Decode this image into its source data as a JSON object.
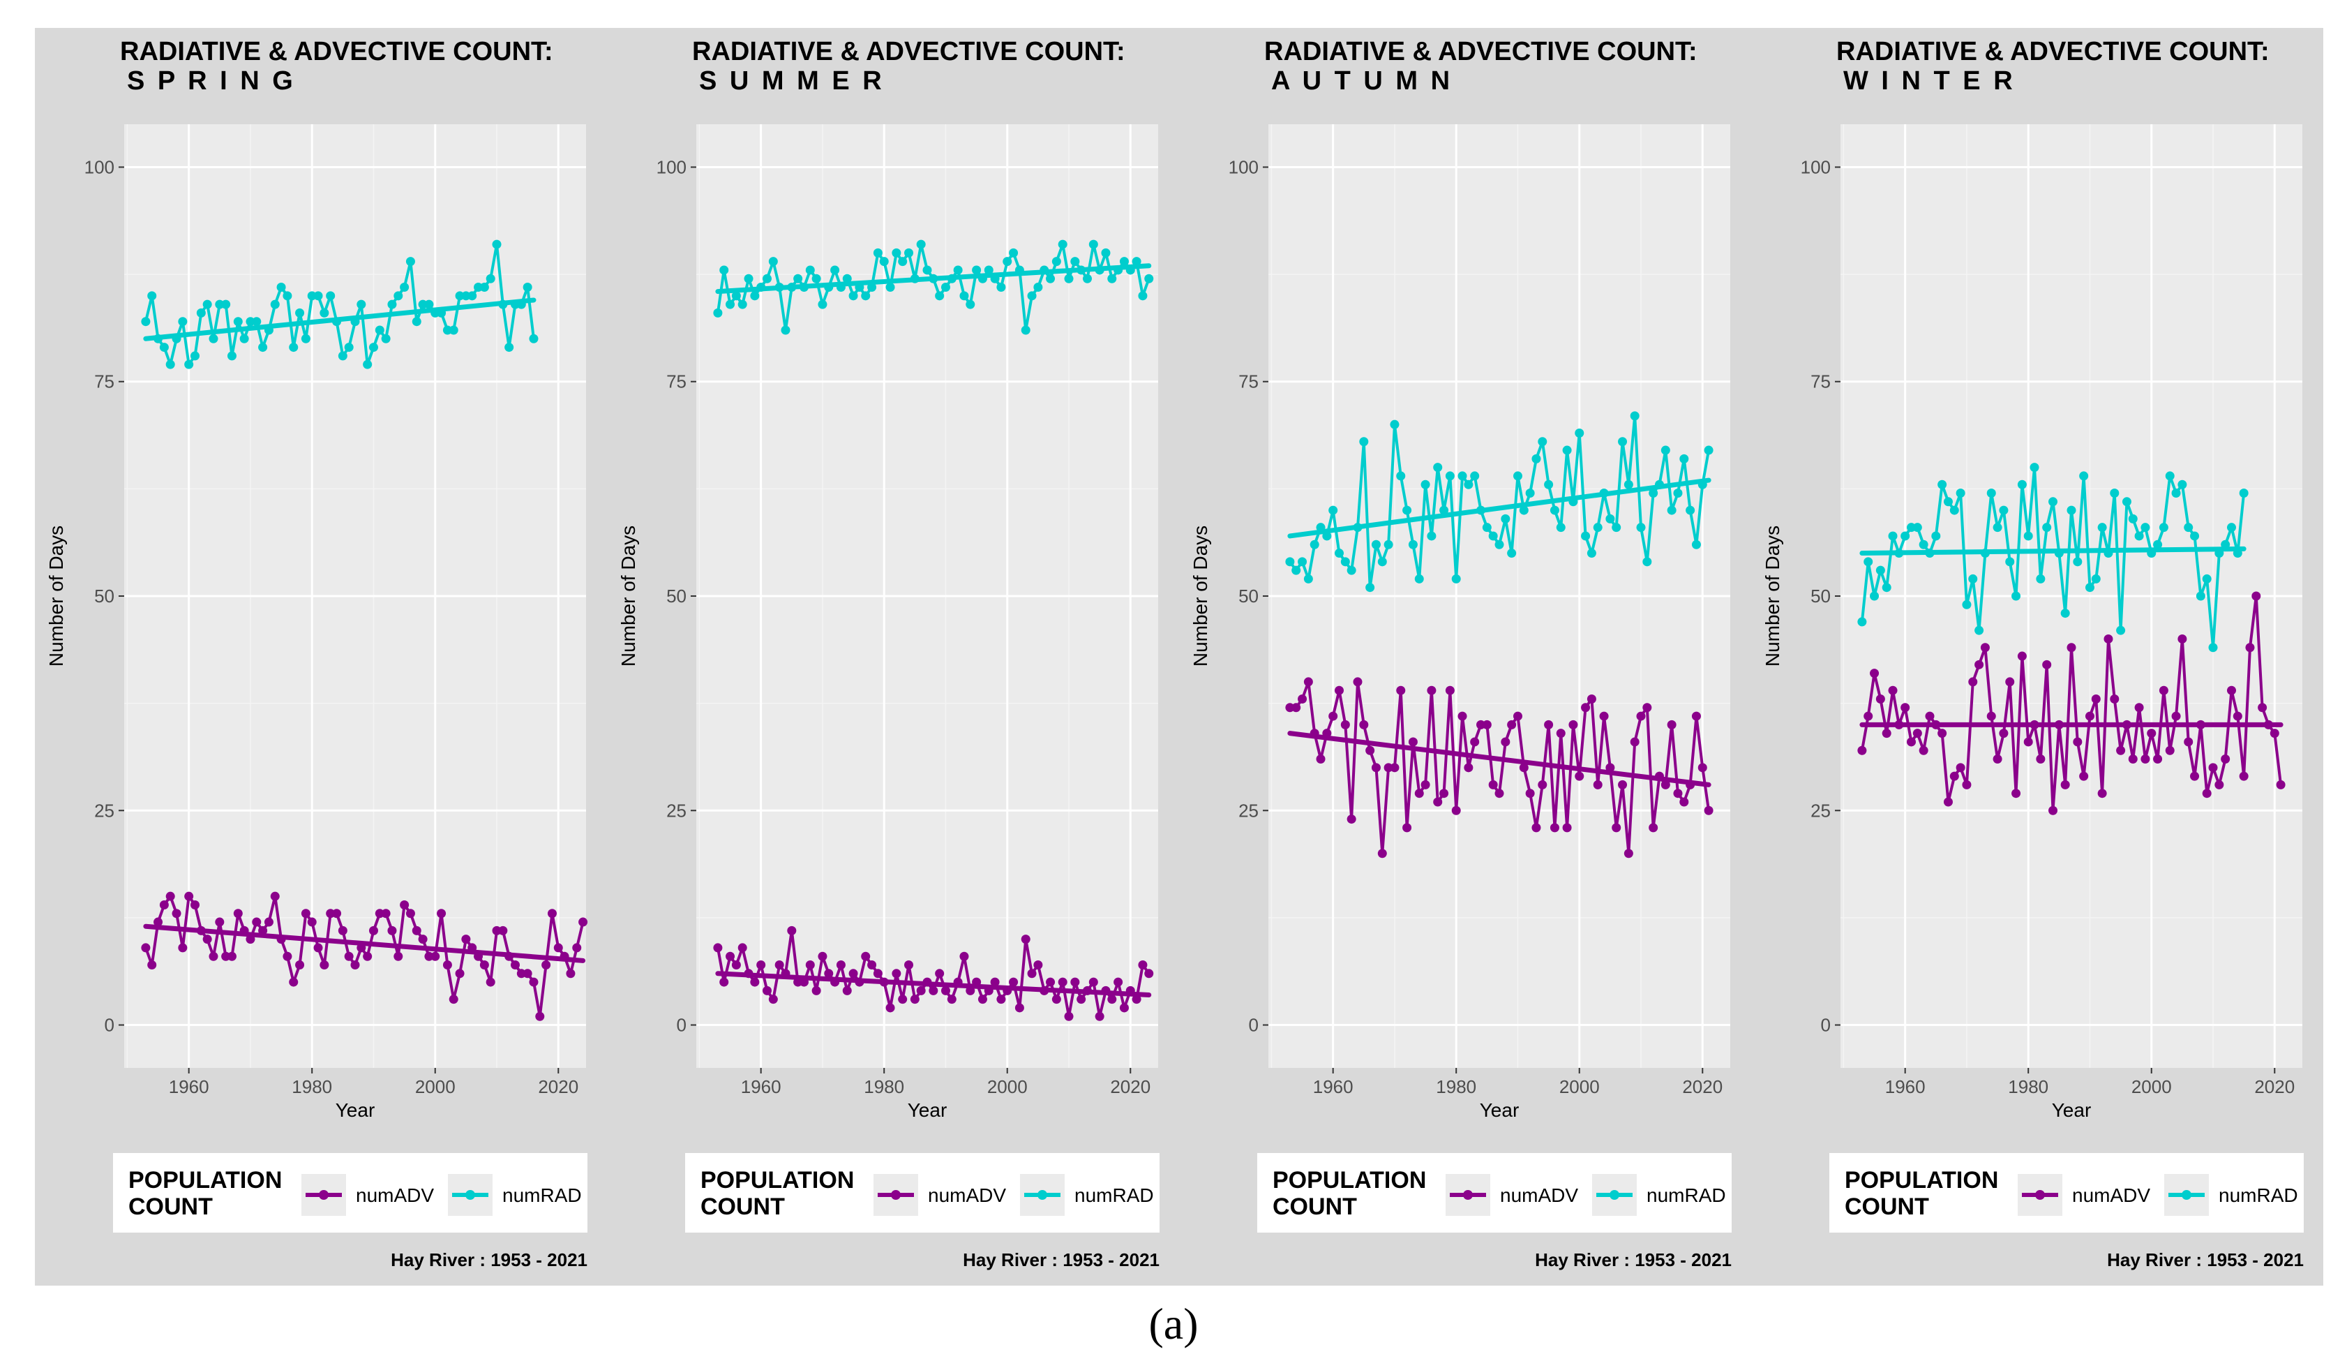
{
  "figure_label": "(a)",
  "chart_data": [
    {
      "type": "line",
      "title_line1": "RADIATIVE & ADVECTIVE COUNT:",
      "title_line2": "S P R I N G",
      "xlabel": "Year",
      "ylabel": "Number of Days",
      "xlim": [
        1949.5,
        2024.5
      ],
      "ylim": [
        -5,
        105
      ],
      "xticks": [
        "1960",
        "1980",
        "2000",
        "2020"
      ],
      "yticks": [
        "0",
        "25",
        "50",
        "75",
        "100"
      ],
      "legend_title_line1": "POPULATION",
      "legend_title_line2": "COUNT",
      "legend_entries": [
        "numADV",
        "numRAD"
      ],
      "caption": "Hay River :  1953 - 2021",
      "colors": {
        "numADV": "#8b008b",
        "numRAD": "#00cdcd"
      },
      "x_start": 1953,
      "series": [
        {
          "name": "numRAD",
          "values": [
            82,
            85,
            80,
            79,
            77,
            80,
            82,
            77,
            78,
            83,
            84,
            80,
            84,
            84,
            78,
            82,
            80,
            82,
            82,
            79,
            81,
            84,
            86,
            85,
            79,
            83,
            80,
            85,
            85,
            83,
            85,
            82,
            78,
            79,
            82,
            84,
            77,
            79,
            81,
            80,
            84,
            85,
            86,
            89,
            82,
            84,
            84,
            83,
            83,
            81,
            81,
            85,
            85,
            85,
            86,
            86,
            87,
            91,
            84,
            79,
            84,
            84,
            86,
            80
          ],
          "trend": [
            80,
            84.5
          ]
        },
        {
          "name": "numADV",
          "values": [
            9,
            7,
            12,
            14,
            15,
            13,
            9,
            15,
            14,
            11,
            10,
            8,
            12,
            8,
            8,
            13,
            11,
            10,
            12,
            11,
            12,
            15,
            10,
            8,
            5,
            7,
            13,
            12,
            9,
            7,
            13,
            13,
            11,
            8,
            7,
            9,
            8,
            11,
            13,
            13,
            11,
            8,
            14,
            13,
            11,
            10,
            8,
            8,
            13,
            7,
            3,
            6,
            10,
            9,
            8,
            7,
            5,
            11,
            11,
            8,
            7,
            6,
            6,
            5,
            1,
            7,
            13,
            9,
            8,
            6,
            9,
            12
          ],
          "trend": [
            11.5,
            7.5
          ]
        }
      ]
    },
    {
      "type": "line",
      "title_line1": "RADIATIVE & ADVECTIVE COUNT:",
      "title_line2": "S U M M E R",
      "xlabel": "Year",
      "ylabel": "Number of Days",
      "xlim": [
        1949.5,
        2024.5
      ],
      "ylim": [
        -5,
        105
      ],
      "xticks": [
        "1960",
        "1980",
        "2000",
        "2020"
      ],
      "yticks": [
        "0",
        "25",
        "50",
        "75",
        "100"
      ],
      "legend_title_line1": "POPULATION",
      "legend_title_line2": "COUNT",
      "legend_entries": [
        "numADV",
        "numRAD"
      ],
      "caption": "Hay River :  1953 - 2021",
      "colors": {
        "numADV": "#8b008b",
        "numRAD": "#00cdcd"
      },
      "x_start": 1953,
      "series": [
        {
          "name": "numRAD",
          "values": [
            83,
            88,
            84,
            85,
            84,
            87,
            85,
            86,
            87,
            89,
            86,
            81,
            86,
            87,
            86,
            88,
            87,
            84,
            86,
            88,
            86,
            87,
            85,
            86,
            85,
            86,
            90,
            89,
            86,
            90,
            89,
            90,
            87,
            91,
            88,
            87,
            85,
            86,
            87,
            88,
            85,
            84,
            88,
            87,
            88,
            87,
            86,
            89,
            90,
            88,
            81,
            85,
            86,
            88,
            87,
            89,
            91,
            87,
            89,
            88,
            87,
            91,
            88,
            90,
            87,
            88,
            89,
            88,
            89,
            85,
            87
          ],
          "trend": [
            85.5,
            88.5
          ]
        },
        {
          "name": "numADV",
          "values": [
            9,
            5,
            8,
            7,
            9,
            6,
            5,
            7,
            4,
            3,
            7,
            6,
            11,
            5,
            5,
            7,
            4,
            8,
            6,
            5,
            7,
            4,
            6,
            5,
            8,
            7,
            6,
            5,
            2,
            6,
            3,
            7,
            3,
            4,
            5,
            4,
            6,
            4,
            3,
            5,
            8,
            4,
            5,
            3,
            4,
            5,
            3,
            4,
            5,
            2,
            10,
            6,
            7,
            4,
            5,
            3,
            5,
            1,
            5,
            3,
            4,
            5,
            1,
            4,
            3,
            5,
            2,
            4,
            3,
            7,
            6
          ],
          "trend": [
            6,
            3.5
          ]
        }
      ]
    },
    {
      "type": "line",
      "title_line1": "RADIATIVE & ADVECTIVE COUNT:",
      "title_line2": "A U T U M N",
      "xlabel": "Year",
      "ylabel": "Number of Days",
      "xlim": [
        1949.5,
        2024.5
      ],
      "ylim": [
        -5,
        105
      ],
      "xticks": [
        "1960",
        "1980",
        "2000",
        "2020"
      ],
      "yticks": [
        "0",
        "25",
        "50",
        "75",
        "100"
      ],
      "legend_title_line1": "POPULATION",
      "legend_title_line2": "COUNT",
      "legend_entries": [
        "numADV",
        "numRAD"
      ],
      "caption": "Hay River :  1953 - 2021",
      "colors": {
        "numADV": "#8b008b",
        "numRAD": "#00cdcd"
      },
      "x_start": 1953,
      "series": [
        {
          "name": "numRAD",
          "values": [
            54,
            53,
            54,
            52,
            56,
            58,
            57,
            60,
            55,
            54,
            53,
            58,
            68,
            51,
            56,
            54,
            56,
            70,
            64,
            60,
            56,
            52,
            63,
            57,
            65,
            60,
            64,
            52,
            64,
            63,
            64,
            60,
            58,
            57,
            56,
            59,
            55,
            64,
            60,
            62,
            66,
            68,
            63,
            60,
            58,
            67,
            61,
            69,
            57,
            55,
            58,
            62,
            59,
            58,
            68,
            63,
            71,
            58,
            54,
            62,
            63,
            67,
            60,
            62,
            66,
            60,
            56,
            63,
            67
          ],
          "trend": [
            57,
            63.5
          ]
        },
        {
          "name": "numADV",
          "values": [
            37,
            37,
            38,
            40,
            34,
            31,
            34,
            36,
            39,
            35,
            24,
            40,
            35,
            32,
            30,
            20,
            30,
            30,
            39,
            23,
            33,
            27,
            28,
            39,
            26,
            27,
            39,
            25,
            36,
            30,
            33,
            35,
            35,
            28,
            27,
            33,
            35,
            36,
            30,
            27,
            23,
            28,
            35,
            23,
            34,
            23,
            35,
            29,
            37,
            38,
            28,
            36,
            30,
            23,
            28,
            20,
            33,
            36,
            37,
            23,
            29,
            28,
            35,
            27,
            26,
            28,
            36,
            30,
            25
          ],
          "trend": [
            34,
            28
          ]
        }
      ]
    },
    {
      "type": "line",
      "title_line1": "RADIATIVE & ADVECTIVE COUNT:",
      "title_line2": "W I N T E R",
      "xlabel": "Year",
      "ylabel": "Number of Days",
      "xlim": [
        1949.5,
        2024.5
      ],
      "ylim": [
        -5,
        105
      ],
      "xticks": [
        "1960",
        "1980",
        "2000",
        "2020"
      ],
      "yticks": [
        "0",
        "25",
        "50",
        "75",
        "100"
      ],
      "legend_title_line1": "POPULATION",
      "legend_title_line2": "COUNT",
      "legend_entries": [
        "numADV",
        "numRAD"
      ],
      "caption": "Hay River :  1953 - 2021",
      "colors": {
        "numADV": "#8b008b",
        "numRAD": "#00cdcd"
      },
      "x_start": 1953,
      "series": [
        {
          "name": "numRAD",
          "values": [
            47,
            54,
            50,
            53,
            51,
            57,
            55,
            57,
            58,
            58,
            56,
            55,
            57,
            63,
            61,
            60,
            62,
            49,
            52,
            46,
            55,
            62,
            58,
            60,
            54,
            50,
            63,
            57,
            65,
            52,
            58,
            61,
            55,
            48,
            60,
            54,
            64,
            51,
            52,
            58,
            55,
            62,
            46,
            61,
            59,
            57,
            58,
            55,
            56,
            58,
            64,
            62,
            63,
            58,
            57,
            50,
            52,
            44,
            55,
            56,
            58,
            55,
            62
          ],
          "trend": [
            55,
            55.5
          ]
        },
        {
          "name": "numADV",
          "values": [
            32,
            36,
            41,
            38,
            34,
            39,
            35,
            37,
            33,
            34,
            32,
            36,
            35,
            34,
            26,
            29,
            30,
            28,
            40,
            42,
            44,
            36,
            31,
            34,
            40,
            27,
            43,
            33,
            35,
            31,
            42,
            25,
            35,
            28,
            44,
            33,
            29,
            36,
            38,
            27,
            45,
            38,
            32,
            35,
            31,
            37,
            31,
            34,
            31,
            39,
            32,
            36,
            45,
            33,
            29,
            35,
            27,
            30,
            28,
            31,
            39,
            36,
            29,
            44,
            50,
            37,
            35,
            34,
            28
          ],
          "trend": [
            35,
            35
          ]
        }
      ]
    }
  ]
}
